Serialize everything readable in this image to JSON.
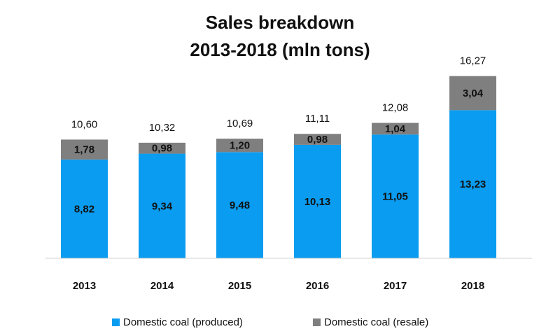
{
  "chart_data": {
    "type": "bar",
    "stacked": true,
    "title": [
      "Sales breakdown",
      "2013-2018 (mln tons)"
    ],
    "categories": [
      "2013",
      "2014",
      "2015",
      "2016",
      "2017",
      "2018"
    ],
    "series": [
      {
        "name": "Domestic coal (produced)",
        "color": "#0a9cf0",
        "values": [
          8.82,
          9.34,
          9.48,
          10.13,
          11.05,
          13.23
        ],
        "labels": [
          "8,82",
          "9,34",
          "9,48",
          "10,13",
          "11,05",
          "13,23"
        ]
      },
      {
        "name": "Domestic coal (resale)",
        "color": "#7f7f7f",
        "values": [
          1.78,
          0.98,
          1.2,
          0.98,
          1.04,
          3.04
        ],
        "labels": [
          "1,78",
          "0,98",
          "1,20",
          "0,98",
          "1,04",
          "3,04"
        ]
      }
    ],
    "totals": [
      10.6,
      10.32,
      10.69,
      11.11,
      12.08,
      16.27
    ],
    "total_labels": [
      "10,60",
      "10,32",
      "10,69",
      "11,11",
      "12,08",
      "16,27"
    ],
    "ylim": [
      0,
      17
    ],
    "grid": false,
    "legend_position": "bottom"
  }
}
